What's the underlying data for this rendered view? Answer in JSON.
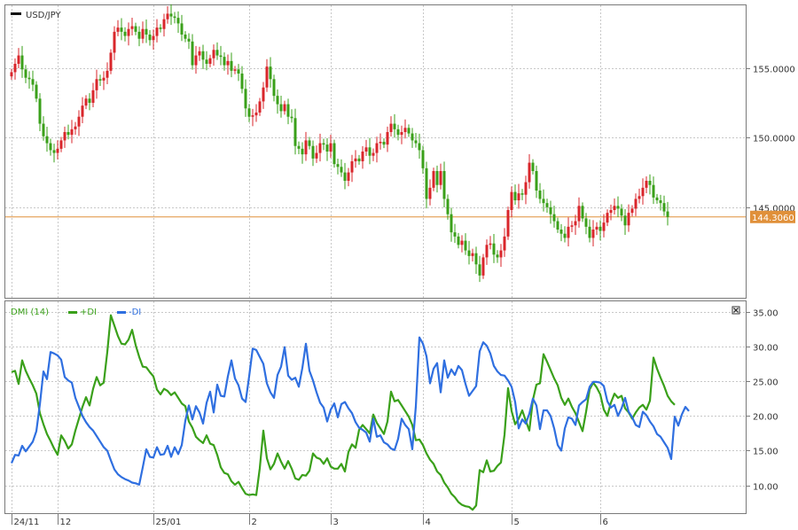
{
  "colors": {
    "up": "#d9262b",
    "down": "#3aa01a",
    "plus_di": "#3aa01a",
    "minus_di": "#2f6fe0",
    "price_line": "#e0903a",
    "grid": "#c8c8c8",
    "frame": "#7a7a7a"
  },
  "chart_data": [
    {
      "type": "candlestick",
      "title": "USD/JPY",
      "current_price_label": "144.3060",
      "current_price": 144.306,
      "ylim": [
        138.5,
        159.5
      ],
      "y_ticks": [
        {
          "value": 145.0,
          "label": "145.0000"
        },
        {
          "value": 150.0,
          "label": "150.0000"
        },
        {
          "value": 155.0,
          "label": "155.0000"
        }
      ],
      "x_ticks": [
        {
          "index": 0,
          "label": "24/11"
        },
        {
          "index": 13,
          "label": "12"
        },
        {
          "index": 40,
          "label": "25/01"
        },
        {
          "index": 67,
          "label": "2"
        },
        {
          "index": 90,
          "label": "3"
        },
        {
          "index": 116,
          "label": "4"
        },
        {
          "index": 141,
          "label": "5"
        },
        {
          "index": 166,
          "label": "6"
        }
      ],
      "grid": true,
      "close": [
        154.7,
        155.3,
        155.9,
        154.9,
        154.3,
        154.2,
        153.8,
        152.8,
        151.0,
        150.1,
        149.6,
        149.1,
        148.9,
        149.2,
        149.8,
        150.4,
        150.2,
        150.6,
        150.8,
        151.5,
        152.3,
        152.8,
        152.5,
        153.4,
        154.2,
        154.1,
        154.3,
        154.8,
        156.1,
        157.6,
        157.9,
        157.6,
        157.3,
        157.8,
        158.0,
        157.6,
        157.1,
        157.8,
        157.4,
        157.0,
        157.3,
        157.9,
        157.8,
        158.5,
        158.9,
        158.7,
        158.6,
        158.2,
        157.4,
        157.1,
        156.9,
        155.2,
        155.9,
        156.2,
        155.6,
        155.3,
        155.7,
        156.3,
        155.9,
        155.8,
        155.2,
        155.5,
        154.8,
        154.9,
        154.6,
        153.5,
        152.1,
        151.5,
        151.6,
        151.8,
        152.6,
        153.6,
        155.1,
        154.2,
        153.0,
        152.4,
        151.9,
        152.4,
        151.5,
        151.4,
        149.4,
        149.2,
        148.8,
        149.8,
        149.4,
        148.5,
        148.9,
        149.6,
        149.5,
        149.0,
        149.6,
        148.1,
        147.9,
        147.5,
        146.9,
        147.5,
        148.3,
        148.5,
        148.3,
        149.0,
        149.3,
        148.7,
        148.9,
        149.6,
        149.7,
        149.5,
        150.4,
        151.0,
        150.6,
        150.2,
        150.4,
        150.7,
        150.3,
        149.8,
        149.6,
        149.1,
        147.8,
        145.6,
        146.4,
        147.6,
        146.6,
        147.6,
        145.6,
        144.5,
        143.2,
        142.9,
        142.3,
        142.6,
        141.9,
        141.5,
        141.7,
        140.9,
        140.1,
        141.4,
        142.3,
        142.4,
        141.6,
        141.4,
        141.9,
        142.9,
        144.8,
        146.1,
        145.5,
        146.0,
        145.9,
        146.8,
        148.2,
        147.6,
        146.2,
        145.6,
        145.3,
        145.0,
        144.5,
        144.0,
        143.4,
        143.1,
        142.8,
        143.6,
        143.7,
        144.0,
        145.1,
        144.2,
        143.6,
        142.8,
        143.4,
        143.6,
        143.3,
        143.9,
        144.6,
        144.8,
        145.1,
        144.9,
        144.4,
        143.7,
        144.6,
        144.9,
        145.6,
        145.8,
        146.4,
        146.9,
        146.6,
        145.7,
        145.5,
        145.3,
        144.7,
        144.3
      ],
      "open": [
        154.4,
        154.7,
        155.3,
        155.9,
        154.9,
        154.3,
        154.2,
        153.8,
        152.8,
        151.0,
        150.1,
        149.6,
        149.1,
        148.9,
        149.2,
        149.8,
        150.4,
        150.2,
        150.6,
        150.8,
        151.5,
        152.3,
        152.8,
        152.5,
        153.4,
        154.2,
        154.1,
        154.3,
        154.8,
        156.1,
        157.6,
        157.9,
        157.6,
        157.3,
        157.8,
        158.0,
        157.6,
        157.1,
        157.8,
        157.4,
        157.0,
        157.3,
        157.9,
        157.8,
        158.5,
        158.9,
        158.7,
        158.6,
        158.2,
        157.4,
        157.1,
        156.9,
        155.2,
        155.9,
        156.2,
        155.6,
        155.3,
        155.7,
        156.3,
        155.9,
        155.8,
        155.2,
        155.5,
        154.8,
        154.9,
        154.6,
        153.5,
        152.1,
        151.5,
        151.6,
        151.8,
        152.6,
        153.6,
        155.1,
        154.2,
        153.0,
        152.4,
        151.9,
        152.4,
        151.5,
        151.4,
        149.4,
        149.2,
        148.8,
        149.8,
        149.4,
        148.5,
        148.9,
        149.6,
        149.5,
        149.0,
        149.6,
        148.1,
        147.9,
        147.5,
        146.9,
        147.5,
        148.3,
        148.5,
        148.3,
        149.0,
        149.3,
        148.7,
        148.9,
        149.6,
        149.7,
        149.5,
        150.4,
        151.0,
        150.6,
        150.2,
        150.4,
        150.7,
        150.3,
        149.8,
        149.6,
        149.1,
        147.8,
        145.6,
        146.4,
        147.6,
        146.6,
        147.6,
        145.6,
        144.5,
        143.2,
        142.9,
        142.3,
        142.6,
        141.9,
        141.5,
        141.7,
        140.9,
        140.1,
        141.4,
        142.3,
        142.4,
        141.6,
        141.4,
        141.9,
        142.9,
        144.8,
        146.1,
        145.5,
        146.0,
        145.9,
        146.8,
        148.2,
        147.6,
        146.2,
        145.6,
        145.3,
        145.0,
        144.5,
        144.0,
        143.4,
        143.1,
        142.8,
        143.6,
        143.7,
        144.0,
        145.1,
        144.2,
        143.6,
        142.8,
        143.4,
        143.6,
        143.3,
        143.9,
        144.6,
        144.8,
        145.1,
        144.9,
        144.4,
        143.7,
        144.6,
        144.9,
        145.6,
        145.8,
        146.4,
        146.9,
        146.6,
        145.7,
        145.5,
        145.3,
        144.7
      ]
    },
    {
      "type": "line",
      "title": "DMI (14)",
      "ylim": [
        6.0,
        36.5
      ],
      "y_ticks": [
        {
          "value": 10,
          "label": "10.00"
        },
        {
          "value": 15,
          "label": "15.00"
        },
        {
          "value": 20,
          "label": "20.00"
        },
        {
          "value": 25,
          "label": "25.00"
        },
        {
          "value": 30,
          "label": "30.00"
        },
        {
          "value": 35,
          "label": "35.00"
        }
      ],
      "grid": true,
      "legend": "top-left",
      "series": [
        {
          "name": "+DI",
          "color": "#3aa01a",
          "values": [
            26.3,
            26.5,
            24.6,
            28.0,
            26.5,
            25.4,
            24.4,
            23.2,
            20.4,
            18.8,
            17.4,
            16.4,
            15.3,
            14.4,
            17.2,
            16.4,
            15.3,
            15.9,
            17.9,
            19.6,
            21.3,
            22.7,
            21.5,
            23.9,
            25.6,
            24.4,
            24.8,
            29.2,
            34.5,
            33.0,
            31.5,
            30.4,
            30.3,
            31.0,
            32.4,
            30.2,
            28.5,
            27.1,
            27.0,
            26.3,
            25.7,
            23.8,
            23.1,
            23.9,
            23.6,
            23.0,
            23.4,
            22.6,
            21.8,
            21.4,
            19.2,
            18.3,
            17.0,
            16.5,
            16.1,
            17.2,
            16.0,
            15.8,
            14.4,
            12.6,
            11.8,
            11.6,
            10.6,
            10.1,
            10.5,
            9.6,
            8.8,
            8.6,
            8.7,
            8.6,
            12.5,
            17.9,
            13.9,
            12.3,
            13.1,
            14.6,
            13.4,
            12.4,
            13.5,
            12.4,
            11.0,
            10.8,
            11.5,
            11.4,
            12.1,
            14.6,
            14.0,
            13.8,
            13.1,
            13.9,
            12.7,
            12.4,
            12.4,
            13.1,
            12.0,
            14.8,
            15.9,
            15.4,
            18.0,
            18.7,
            18.1,
            17.5,
            20.2,
            19.0,
            18.2,
            17.4,
            19.2,
            23.5,
            22.1,
            22.3,
            21.5,
            20.7,
            19.9,
            18.7,
            16.5,
            16.6,
            15.8,
            14.6,
            13.7,
            13.1,
            12.0,
            11.5,
            10.4,
            9.7,
            8.8,
            8.3,
            7.6,
            7.2,
            7.0,
            6.9,
            6.5,
            7.1,
            12.2,
            11.9,
            13.6,
            12.0,
            12.1,
            12.8,
            13.3,
            17.3,
            24.0,
            20.7,
            18.8,
            19.6,
            20.8,
            19.3,
            17.9,
            22.3,
            24.5,
            24.7,
            28.9,
            27.8,
            26.6,
            25.4,
            24.4,
            22.6,
            21.6,
            22.5,
            21.3,
            20.4,
            19.1,
            17.8,
            20.6,
            23.8,
            24.8,
            24.1,
            23.1,
            20.9,
            20.0,
            21.9,
            23.2,
            22.6,
            22.9,
            21.1,
            20.5,
            19.6,
            20.5,
            21.2,
            21.6,
            20.9,
            22.2,
            28.4,
            26.8,
            25.5,
            24.3,
            22.9,
            22.1,
            21.6
          ]
        },
        {
          "name": "-DI",
          "color": "#2f6fe0",
          "values": [
            13.2,
            14.4,
            14.3,
            15.7,
            14.9,
            15.6,
            16.3,
            17.8,
            21.7,
            26.4,
            25.3,
            29.2,
            29.0,
            28.7,
            28.1,
            25.6,
            25.1,
            24.8,
            22.6,
            21.3,
            20.0,
            19.1,
            18.4,
            17.9,
            17.1,
            16.3,
            15.5,
            15.0,
            13.6,
            12.3,
            11.6,
            11.2,
            10.9,
            10.7,
            10.4,
            10.3,
            10.1,
            12.6,
            15.2,
            14.1,
            14.0,
            15.5,
            14.4,
            14.5,
            15.7,
            14.1,
            15.5,
            14.5,
            15.8,
            19.3,
            21.5,
            19.5,
            21.4,
            20.5,
            18.9,
            21.9,
            23.5,
            20.5,
            24.5,
            22.9,
            22.8,
            25.7,
            28.0,
            25.4,
            24.4,
            22.5,
            22.0,
            25.7,
            29.7,
            29.5,
            28.5,
            27.5,
            24.7,
            23.4,
            22.6,
            25.9,
            27.1,
            29.9,
            25.8,
            25.2,
            25.5,
            24.2,
            26.9,
            30.4,
            26.5,
            25.1,
            23.4,
            21.9,
            21.2,
            19.2,
            20.9,
            21.8,
            19.8,
            21.7,
            22.0,
            21.1,
            20.4,
            19.1,
            18.3,
            18.0,
            17.6,
            16.3,
            19.6,
            17.0,
            17.2,
            16.2,
            15.9,
            15.3,
            15.1,
            16.7,
            19.6,
            18.7,
            18.1,
            15.2,
            21.4,
            31.3,
            30.4,
            28.6,
            24.7,
            26.8,
            27.6,
            23.4,
            28.0,
            25.5,
            26.7,
            25.9,
            27.2,
            26.6,
            24.6,
            22.9,
            23.6,
            24.3,
            29.3,
            30.6,
            30.1,
            29.0,
            27.2,
            26.4,
            25.9,
            25.8,
            25.1,
            24.2,
            22.0,
            18.2,
            19.5,
            18.9,
            20.3,
            22.5,
            21.5,
            18.1,
            20.8,
            20.8,
            20.0,
            18.2,
            15.8,
            15.0,
            18.2,
            19.8,
            19.6,
            18.7,
            21.5,
            22.0,
            22.4,
            24.2,
            24.9,
            24.9,
            24.8,
            24.3,
            22.1,
            21.2,
            21.6,
            20.0,
            21.1,
            22.6,
            20.6,
            19.8,
            18.7,
            18.4,
            20.6,
            20.1,
            19.2,
            18.5,
            17.4,
            17.0,
            16.2,
            15.4,
            13.8,
            19.9,
            18.6,
            20.2,
            21.3,
            20.7
          ]
        }
      ]
    }
  ]
}
